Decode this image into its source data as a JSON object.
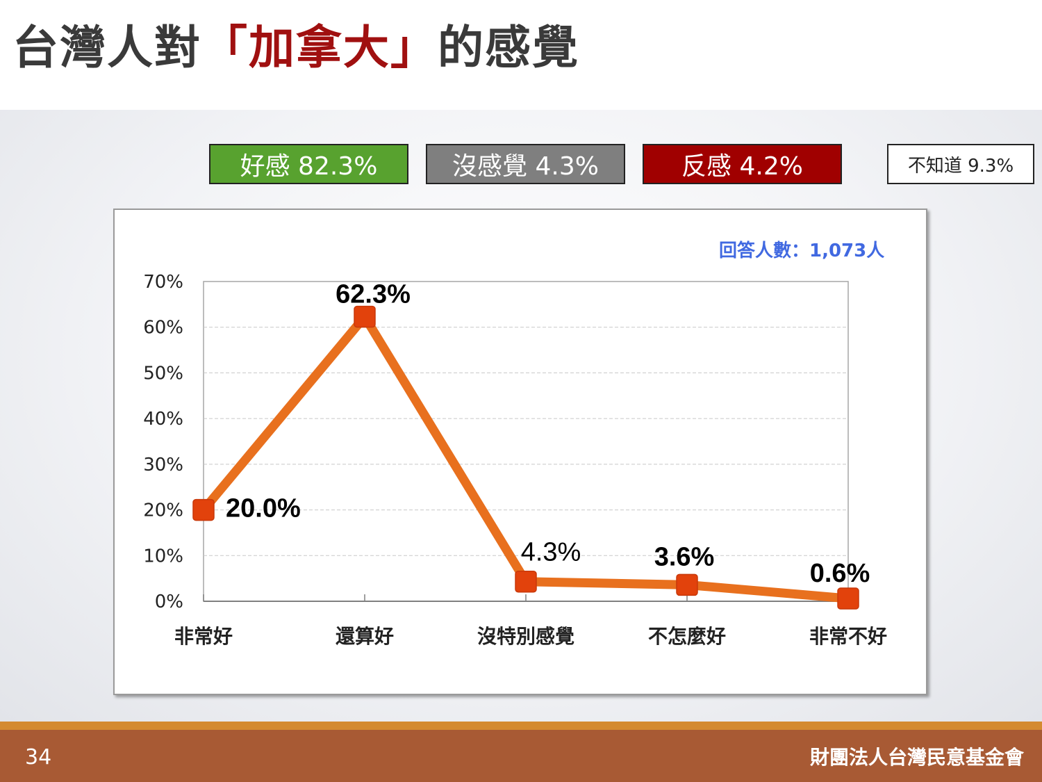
{
  "title": {
    "prefix": "台灣人對",
    "highlight": "「加拿大」",
    "suffix": "的感覺"
  },
  "summary": {
    "favorable": "好感 82.3%",
    "neutral": "沒感覺 4.3%",
    "unfavorable": "反感 4.2%",
    "unknown": "不知道 9.3%"
  },
  "colors": {
    "favorable": "#58a22f",
    "neutral": "#7f7f7f",
    "unfavorable": "#a00000",
    "line": "#e8701e",
    "marker": "#e2420c",
    "title_accent": "#a01010",
    "footer": "#a85a34"
  },
  "respondents": "回答人數：1,073人",
  "chart_data": {
    "type": "line",
    "categories": [
      "非常好",
      "還算好",
      "沒特別感覺",
      "不怎麼好",
      "非常不好"
    ],
    "values": [
      20.0,
      62.3,
      4.3,
      3.6,
      0.6
    ],
    "value_labels": [
      "20.0%",
      "62.3%",
      "4.3%",
      "3.6%",
      "0.6%"
    ],
    "y_ticks": [
      "0%",
      "10%",
      "20%",
      "30%",
      "40%",
      "50%",
      "60%",
      "70%"
    ],
    "ylim": [
      0,
      70
    ],
    "grid": true,
    "legend": "none",
    "title": "",
    "xlabel": "",
    "ylabel": ""
  },
  "footer": {
    "page": "34",
    "org": "財團法人台灣民意基金會"
  }
}
